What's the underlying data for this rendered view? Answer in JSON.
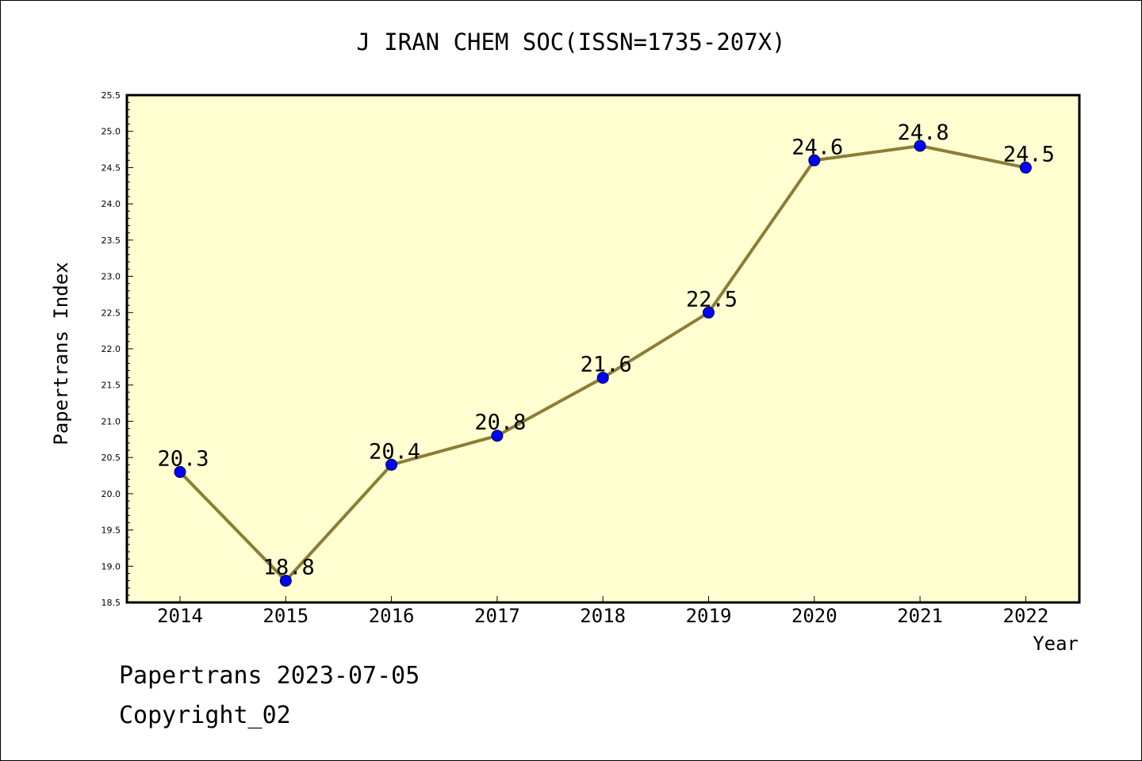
{
  "title": "J IRAN CHEM SOC(ISSN=1735-207X)",
  "footer": {
    "line1": "Papertrans 2023-07-05",
    "line2": "Copyright_02"
  },
  "colors": {
    "plot_background": "#ffffd2",
    "line": "#8c7d35",
    "marker": "#0000ff",
    "axis": "#000000"
  },
  "chart_data": {
    "type": "line",
    "title": "J IRAN CHEM SOC(ISSN=1735-207X)",
    "xlabel": "Year",
    "ylabel": "Papertrans Index",
    "categories": [
      "2014",
      "2015",
      "2016",
      "2017",
      "2018",
      "2019",
      "2020",
      "2021",
      "2022"
    ],
    "values": [
      20.3,
      18.8,
      20.4,
      20.8,
      21.6,
      22.5,
      24.6,
      24.8,
      24.5
    ],
    "data_labels": [
      "20.3",
      "18.8",
      "20.4",
      "20.8",
      "21.6",
      "22.5",
      "24.6",
      "24.8",
      "24.5"
    ],
    "ylim": [
      18.5,
      25.5
    ],
    "y_ticks": [
      "18.5",
      "19.0",
      "19.5",
      "20.0",
      "20.5",
      "21.0",
      "21.5",
      "22.0",
      "22.5",
      "23.0",
      "23.5",
      "24.0",
      "24.5",
      "25.0",
      "25.5"
    ],
    "grid": false,
    "legend": "none"
  }
}
